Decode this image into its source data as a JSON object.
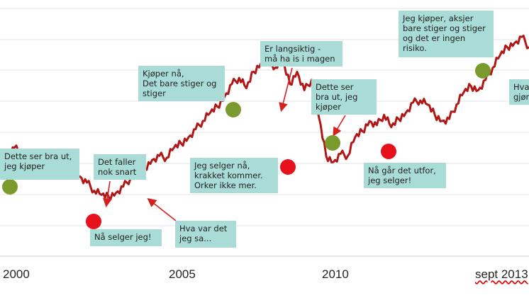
{
  "chart_data": {
    "type": "line",
    "title": "",
    "xlabel": "",
    "ylabel": "",
    "grid": "horizontal",
    "line_color": "#b01818",
    "buy_color": "#7a9a2e",
    "sell_color": "#e8101a",
    "callout_color": "#a9dcd6",
    "x_ticks": [
      {
        "label": "2000",
        "x": 2000.0
      },
      {
        "label": "2005",
        "x": 2005.0
      },
      {
        "label": "2010",
        "x": 2010.0
      },
      {
        "label": "sept 2013",
        "x": 2013.7
      }
    ],
    "xlim": [
      1999.6,
      2014.2
    ],
    "ylim": [
      0,
      100
    ],
    "series": [
      {
        "values": [
          [
            1999.6,
            40
          ],
          [
            1999.8,
            44
          ],
          [
            2000.0,
            47
          ],
          [
            2000.2,
            44
          ],
          [
            2000.4,
            41
          ],
          [
            2000.6,
            43
          ],
          [
            2000.8,
            40
          ],
          [
            2001.0,
            38
          ],
          [
            2001.2,
            41
          ],
          [
            2001.4,
            36
          ],
          [
            2001.6,
            34
          ],
          [
            2001.8,
            33
          ],
          [
            2002.0,
            30
          ],
          [
            2002.2,
            26
          ],
          [
            2002.4,
            24
          ],
          [
            2002.6,
            23
          ],
          [
            2002.8,
            25
          ],
          [
            2003.0,
            28
          ],
          [
            2003.2,
            32
          ],
          [
            2003.4,
            35
          ],
          [
            2003.6,
            37
          ],
          [
            2003.8,
            41
          ],
          [
            2004.0,
            43
          ],
          [
            2004.2,
            42
          ],
          [
            2004.4,
            47
          ],
          [
            2004.6,
            49
          ],
          [
            2004.8,
            52
          ],
          [
            2005.0,
            56
          ],
          [
            2005.2,
            60
          ],
          [
            2005.4,
            64
          ],
          [
            2005.6,
            67
          ],
          [
            2005.8,
            72
          ],
          [
            2006.0,
            78
          ],
          [
            2006.2,
            81
          ],
          [
            2006.4,
            76
          ],
          [
            2006.6,
            84
          ],
          [
            2006.8,
            88
          ],
          [
            2007.0,
            90
          ],
          [
            2007.2,
            86
          ],
          [
            2007.4,
            89
          ],
          [
            2007.6,
            78
          ],
          [
            2007.8,
            84
          ],
          [
            2008.0,
            75
          ],
          [
            2008.2,
            80
          ],
          [
            2008.4,
            62
          ],
          [
            2008.6,
            43
          ],
          [
            2008.8,
            40
          ],
          [
            2009.0,
            44
          ],
          [
            2009.2,
            43
          ],
          [
            2009.4,
            52
          ],
          [
            2009.6,
            55
          ],
          [
            2009.8,
            60
          ],
          [
            2010.0,
            58
          ],
          [
            2010.2,
            63
          ],
          [
            2010.4,
            57
          ],
          [
            2010.6,
            61
          ],
          [
            2010.8,
            64
          ],
          [
            2011.0,
            69
          ],
          [
            2011.2,
            70
          ],
          [
            2011.4,
            68
          ],
          [
            2011.6,
            63
          ],
          [
            2011.8,
            60
          ],
          [
            2012.0,
            61
          ],
          [
            2012.2,
            68
          ],
          [
            2012.4,
            74
          ],
          [
            2012.6,
            77
          ],
          [
            2012.8,
            75
          ],
          [
            2013.0,
            80
          ],
          [
            2013.2,
            86
          ],
          [
            2013.4,
            92
          ],
          [
            2013.6,
            96
          ],
          [
            2013.8,
            98
          ],
          [
            2014.0,
            101
          ],
          [
            2014.2,
            96
          ]
        ]
      }
    ],
    "markers": [
      {
        "type": "buy",
        "x": 2000.0,
        "y": 47
      },
      {
        "type": "sell",
        "x": 2002.6,
        "y": 23
      },
      {
        "type": "buy",
        "x": 2006.4,
        "y": 80
      },
      {
        "type": "sell",
        "x": 2008.3,
        "y": 58
      },
      {
        "type": "buy",
        "x": 2010.0,
        "y": 62
      },
      {
        "type": "sell",
        "x": 2011.9,
        "y": 60
      },
      {
        "type": "buy",
        "x": 2013.4,
        "y": 96
      }
    ],
    "annotations": [
      {
        "id": "a1",
        "text": "Dette ser bra ut,\njeg kjøper"
      },
      {
        "id": "a2",
        "text": "Det faller\nnok snart"
      },
      {
        "id": "a3",
        "text": "Nå selger jeg!"
      },
      {
        "id": "a4",
        "text": "Hva var det\njeg sa..."
      },
      {
        "id": "a5",
        "text": "Kjøper nå,\nDet bare stiger og\nstiger"
      },
      {
        "id": "a6",
        "text": "Jeg selger nå,\nkrakket kommer.\nOrker ikke mer."
      },
      {
        "id": "a7",
        "text": "Er langsiktig  -\nmå ha is i magen"
      },
      {
        "id": "a8",
        "text": "Dette ser\nbra ut,  jeg\nkjøper"
      },
      {
        "id": "a9",
        "text": "Nå går det utfor,\njeg selger!"
      },
      {
        "id": "a10",
        "text": "Jeg kjøper,  aksjer\nbare stiger og stiger\nog det er ingen\nrisiko."
      },
      {
        "id": "a11",
        "text": "Hva\ngjør"
      }
    ]
  }
}
